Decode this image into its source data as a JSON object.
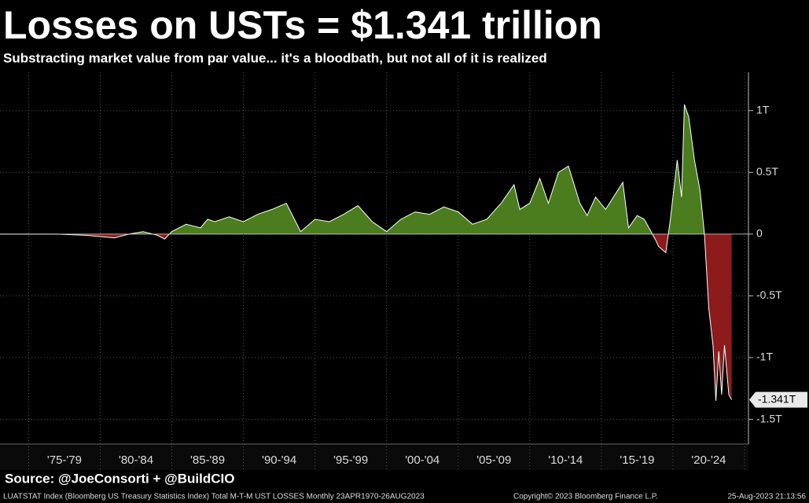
{
  "chart_data": {
    "type": "area",
    "title": "Losses on USTs = $1.341 trillion",
    "subtitle": "Substracting market value from par value... it's a bloodbath, but not all of it is realized",
    "source": "Source: @JoeConsorti + @BuildCIO",
    "footer": "LUATSTAT Index (Bloomberg US Treasury Statistics Index) Total M-T-M UST LOSSES  Monthly 23APR1970-26AUG2023",
    "copyright": "Copyright© 2023 Bloomberg Finance L.P.",
    "timestamp": "25-Aug-2023 21:13:56",
    "categories": [
      "'75-'79",
      "'80-'84",
      "'85-'89",
      "'90-'94",
      "'95-'99",
      "'00-'04",
      "'05-'09",
      "'10-'14",
      "'15-'19",
      "'20-'24"
    ],
    "x": [
      1973,
      1975,
      1977,
      1979,
      1980,
      1981,
      1982,
      1983,
      1984,
      1984.5,
      1985,
      1986,
      1987,
      1987.5,
      1988,
      1989,
      1990,
      1991,
      1992,
      1993,
      1994,
      1995,
      1996,
      1997,
      1998,
      1999,
      2000,
      2001,
      2002,
      2003,
      2004,
      2005,
      2006,
      2007,
      2008,
      2008.9,
      2009.3,
      2010,
      2010.7,
      2011.3,
      2012,
      2012.7,
      2013.5,
      2014,
      2014.6,
      2015.3,
      2016.5,
      2016.9,
      2017.5,
      2018,
      2018.8,
      2019,
      2019.5,
      2019.8,
      2020.3,
      2020.6,
      2020.8,
      2021.1,
      2021.5,
      2021.9,
      2022.2,
      2022.5,
      2022.8,
      2023.0,
      2023.2,
      2023.4,
      2023.6,
      2023.9,
      2024.1
    ],
    "values": [
      0,
      0,
      0,
      -0.01,
      -0.02,
      -0.03,
      0,
      0.02,
      -0.01,
      -0.04,
      0.02,
      0.08,
      0.05,
      0.12,
      0.1,
      0.14,
      0.1,
      0.16,
      0.2,
      0.25,
      0.02,
      0.12,
      0.1,
      0.16,
      0.23,
      0.1,
      0.02,
      0.12,
      0.18,
      0.16,
      0.22,
      0.18,
      0.08,
      0.12,
      0.25,
      0.4,
      0.2,
      0.25,
      0.45,
      0.25,
      0.5,
      0.55,
      0.25,
      0.15,
      0.3,
      0.2,
      0.42,
      0.05,
      0.15,
      0.12,
      -0.05,
      -0.1,
      -0.15,
      0.1,
      0.6,
      0.3,
      1.05,
      0.95,
      0.6,
      0.35,
      0,
      -0.6,
      -0.9,
      -1.35,
      -0.95,
      -1.3,
      -0.9,
      -1.3,
      -1.341
    ],
    "value_labels": [
      null,
      null,
      null,
      null,
      null,
      null,
      null,
      null,
      null,
      null,
      null,
      null,
      null,
      null,
      null,
      null,
      null,
      null,
      null,
      null,
      null,
      null,
      null,
      null,
      null,
      null,
      null,
      null,
      null,
      null,
      null,
      null,
      null,
      null,
      null,
      null,
      null,
      null,
      null,
      null,
      null,
      null,
      null,
      null,
      null,
      null,
      null,
      null,
      null,
      null,
      null,
      null,
      null,
      null,
      null,
      null,
      null,
      null,
      null,
      null,
      null,
      null,
      null,
      null,
      null,
      null,
      null,
      null,
      "-1.341T"
    ],
    "xlim": [
      1973,
      2025
    ],
    "xticks": [
      1975,
      1980,
      1985,
      1990,
      1995,
      2000,
      2005,
      2010,
      2015,
      2020,
      2025
    ],
    "ylim": [
      -1.7,
      1.31
    ],
    "yticks": [
      {
        "value": 1,
        "label": "1T"
      },
      {
        "value": 0.5,
        "label": "0.5T"
      },
      0,
      {
        "value": -0.5,
        "label": "-0.5T"
      },
      {
        "value": -1,
        "label": "-1T"
      },
      {
        "value": -1.5,
        "label": "-1.5T"
      }
    ],
    "grid": true,
    "color_positive": "#4b7d1f",
    "color_negative": "#8e1b1b",
    "line_color": "#ffffff"
  }
}
